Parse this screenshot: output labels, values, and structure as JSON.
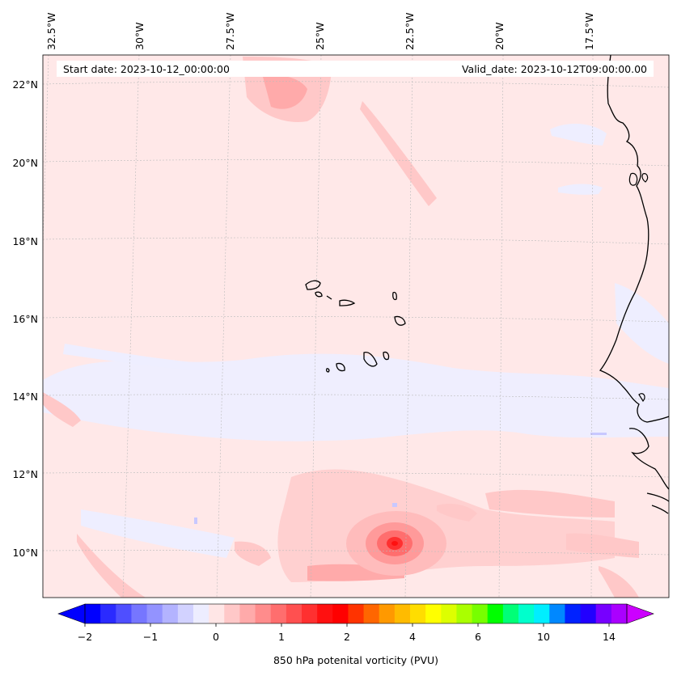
{
  "map": {
    "title_left": "Start date: 2023-10-12_00:00:00",
    "title_right": "Valid_date: 2023-10-12T09:00:00.00",
    "lon_labels": [
      "32.5°W",
      "30°W",
      "27.5°W",
      "25°W",
      "22.5°W",
      "20°W",
      "17.5°W"
    ],
    "lat_labels": [
      "22°N",
      "20°N",
      "18°N",
      "16°N",
      "14°N",
      "12°N",
      "10°N"
    ],
    "region": "Cape Verde and West African coast"
  },
  "colorbar": {
    "label": "850 hPa potenital vorticity (PVU)",
    "tick_labels": [
      "−2",
      "−1",
      "0",
      "1",
      "2",
      "4",
      "6",
      "10",
      "14"
    ],
    "colors": [
      "#0000ff",
      "#2a2aff",
      "#4f4fff",
      "#7676ff",
      "#9393ff",
      "#b3b3ff",
      "#d2d2ff",
      "#ededff",
      "#ffe6e6",
      "#ffc8c8",
      "#ffaaaa",
      "#ff8c8c",
      "#ff6e6e",
      "#ff5050",
      "#ff3030",
      "#ff1010",
      "#ff0000",
      "#ff3300",
      "#ff6600",
      "#ff9900",
      "#ffbb00",
      "#ffdd00",
      "#ffff00",
      "#ddff00",
      "#aaff00",
      "#77ff00",
      "#00ff00",
      "#00ff77",
      "#00ffcc",
      "#00eeff",
      "#0088ff",
      "#0022ff",
      "#2200ff",
      "#7700ff",
      "#aa00ff"
    ],
    "extend_low_color": "#0000ff",
    "extend_high_color": "#cc00ff"
  }
}
